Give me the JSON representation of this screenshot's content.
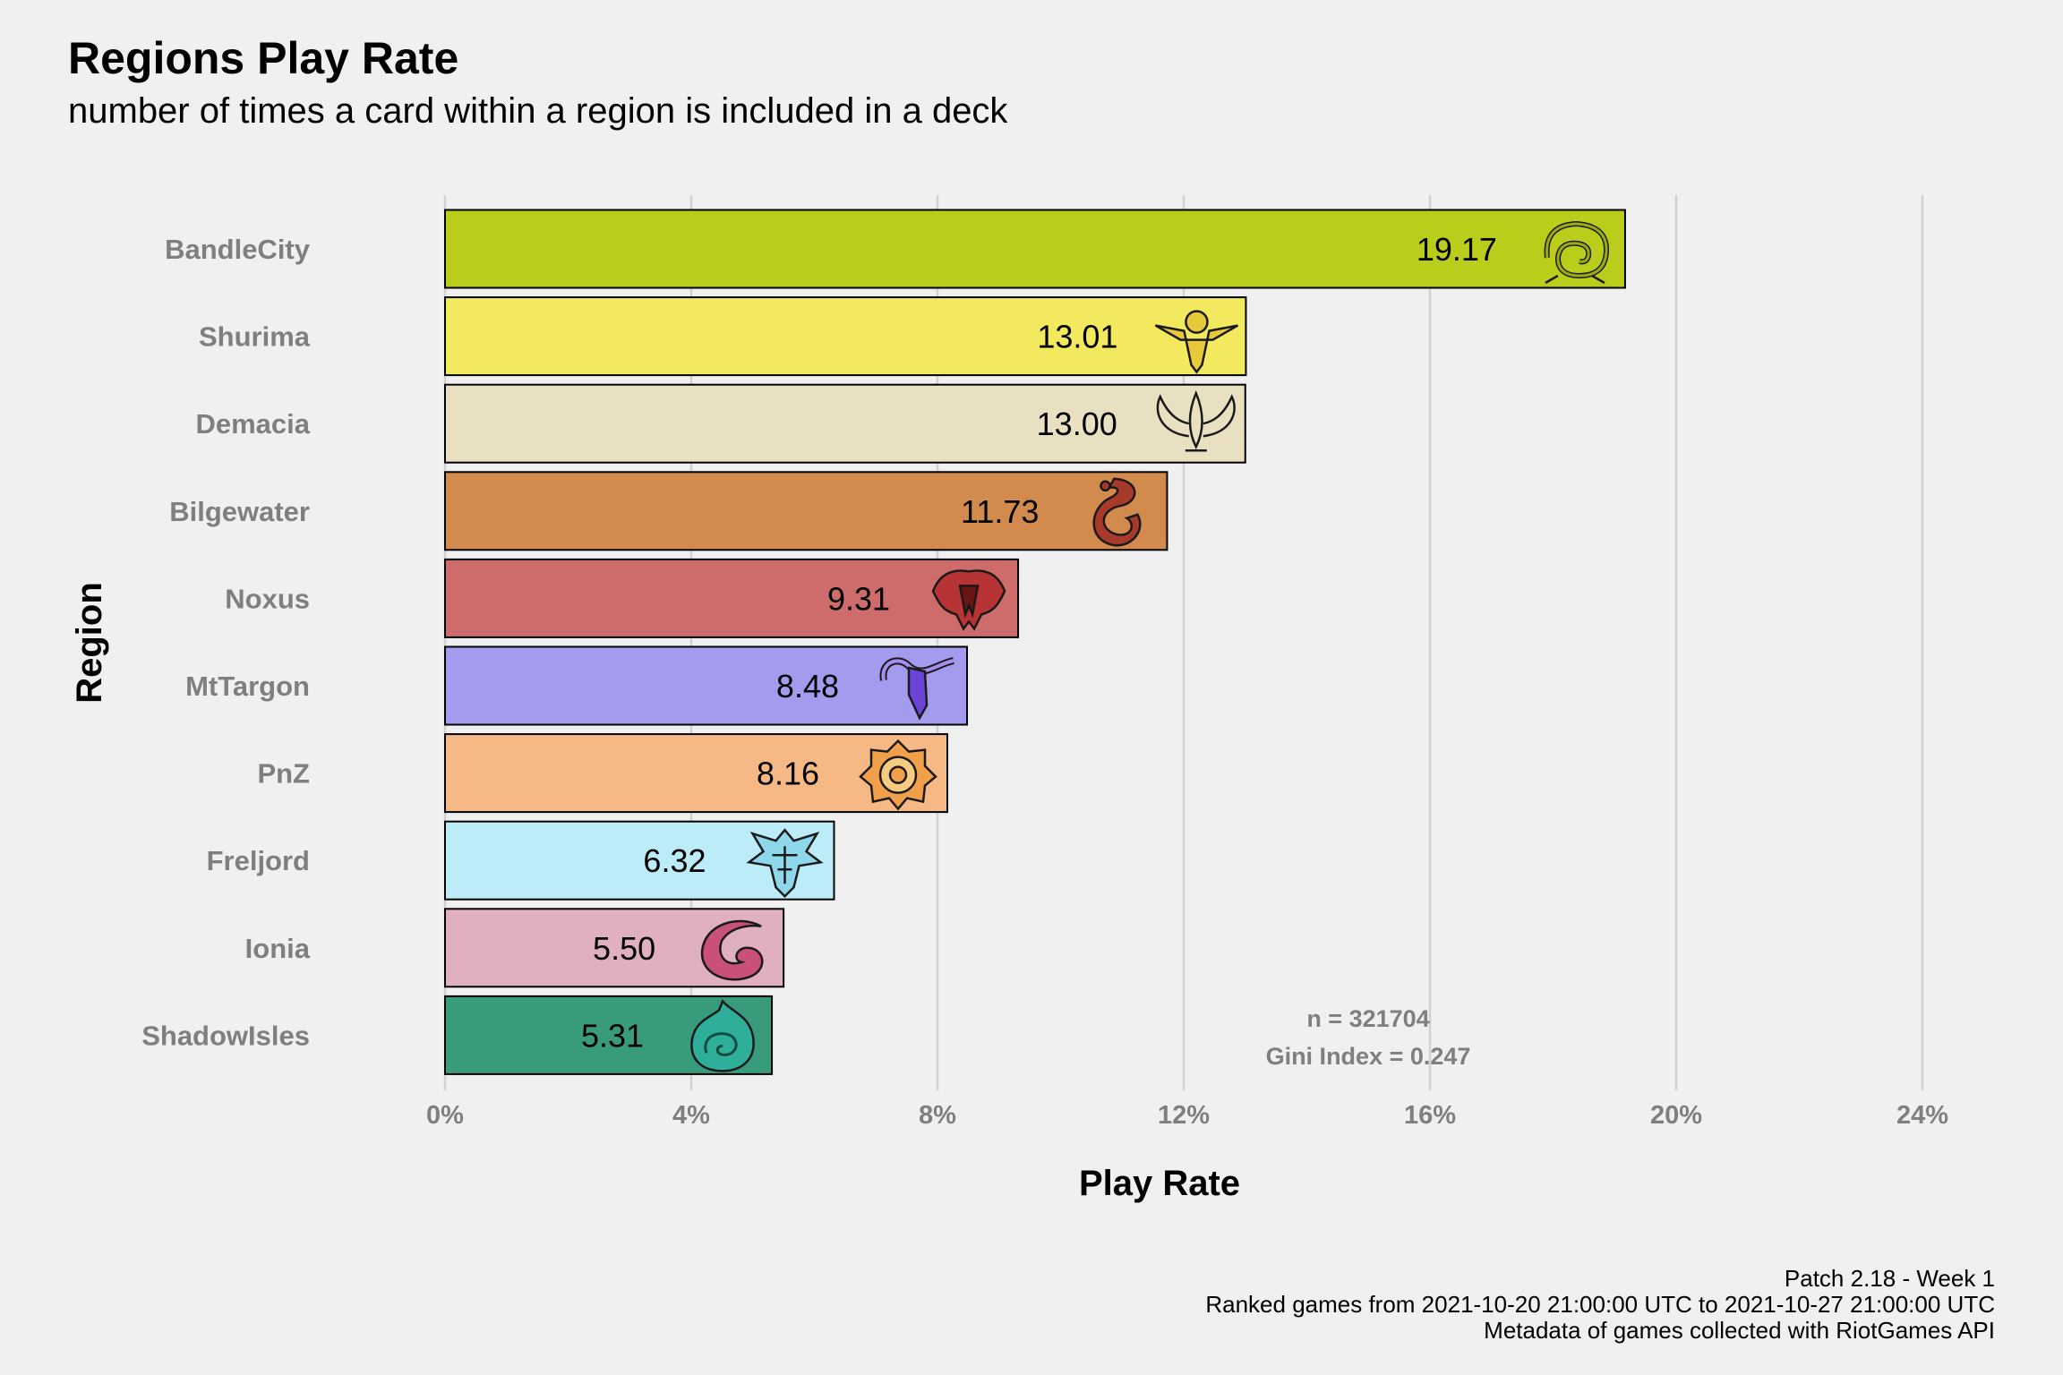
{
  "chart_data": {
    "type": "bar",
    "orientation": "horizontal",
    "title": "Regions Play Rate",
    "subtitle": "number of times a card within a region is included in a deck",
    "xlabel": "Play Rate",
    "ylabel": "Region",
    "xlim": [
      0,
      24
    ],
    "x_ticks": [
      "0%",
      "4%",
      "8%",
      "12%",
      "16%",
      "20%",
      "24%"
    ],
    "x_tick_values": [
      0,
      4,
      8,
      12,
      16,
      20,
      24
    ],
    "grid": "vertical major lines",
    "legend": "none",
    "categories": [
      "BandleCity",
      "Shurima",
      "Demacia",
      "Bilgewater",
      "Noxus",
      "MtTargon",
      "PnZ",
      "Freljord",
      "Ionia",
      "ShadowIsles"
    ],
    "values": [
      19.17,
      13.01,
      13.0,
      11.73,
      9.31,
      8.48,
      8.16,
      6.32,
      5.5,
      5.31
    ],
    "value_labels": [
      "19.17",
      "13.01",
      "13.00",
      "11.73",
      "9.31",
      "8.48",
      "8.16",
      "6.32",
      "5.50",
      "5.31"
    ],
    "colors": [
      "#bacd1b",
      "#f3e95e",
      "#e9dfc1",
      "#d38a4d",
      "#cd6c6a",
      "#a39cee",
      "#f6b985",
      "#bbecf7",
      "#e0afc0",
      "#389b7b"
    ],
    "icon_colors": [
      "#9aab14",
      "#e8c93a",
      "#e9dfc1",
      "#a83a2c",
      "#b83434",
      "#6a45d8",
      "#f0a04a",
      "#8fd8ec",
      "#c8507a",
      "#2fae9a"
    ],
    "icons": [
      "bandlecity-icon",
      "shurima-icon",
      "demacia-icon",
      "bilgewater-icon",
      "noxus-icon",
      "mttargon-icon",
      "pnz-icon",
      "freljord-icon",
      "ionia-icon",
      "shadowisles-icon"
    ],
    "annotations": [
      "n = 321704",
      "Gini Index = 0.247"
    ]
  },
  "caption": {
    "line1": "Patch 2.18 - Week 1",
    "line2": "Ranked games from 2021-10-20 21:00:00 UTC to 2021-10-27 21:00:00 UTC",
    "line3": "Metadata of games collected with RiotGames API"
  }
}
